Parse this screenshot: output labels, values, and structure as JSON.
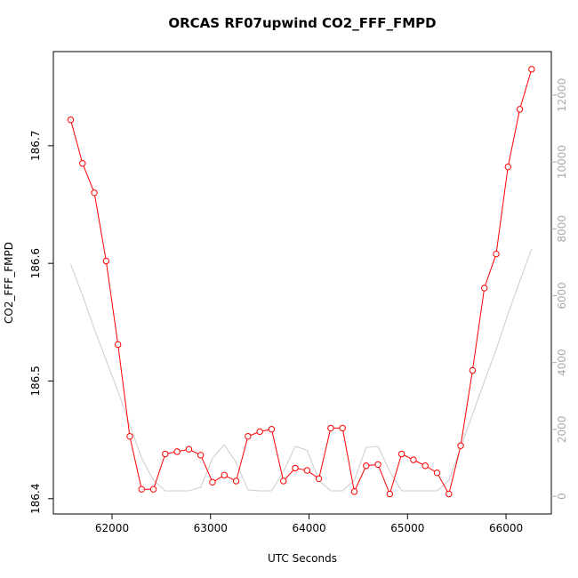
{
  "chart_data": {
    "type": "line",
    "title": "ORCAS RF07upwind CO2_FFF_FMPD",
    "x_label": "UTC Seconds",
    "y_label": "CO2_FFF_FMPD",
    "x": [
      61580,
      61700,
      61820,
      61940,
      62060,
      62180,
      62300,
      62420,
      62540,
      62660,
      62780,
      62900,
      63020,
      63140,
      63260,
      63380,
      63500,
      63620,
      63740,
      63860,
      63980,
      64100,
      64220,
      64340,
      64460,
      64580,
      64700,
      64820,
      64940,
      65060,
      65180,
      65300,
      65420,
      65540,
      65660,
      65780,
      65900,
      66020,
      66140,
      66260
    ],
    "series": [
      {
        "color": "#ff0000",
        "axis": "y",
        "markers": true,
        "values": [
          186.722,
          186.685,
          186.66,
          186.602,
          186.531,
          186.453,
          186.408,
          186.408,
          186.438,
          186.44,
          186.442,
          186.437,
          186.414,
          186.42,
          186.415,
          186.453,
          186.457,
          186.459,
          186.415,
          186.426,
          186.424,
          186.417,
          186.46,
          186.46,
          186.406,
          186.428,
          186.429,
          186.404,
          186.438,
          186.433,
          186.428,
          186.422,
          186.404,
          186.445,
          186.509,
          186.579,
          186.608,
          186.682,
          186.731,
          186.765
        ]
      },
      {
        "color": "#cccccc",
        "axis": "y2",
        "markers": false,
        "values": [
          6940,
          6010,
          5000,
          4070,
          3140,
          2130,
          1140,
          480,
          160,
          160,
          160,
          270,
          1140,
          1540,
          1010,
          190,
          160,
          160,
          740,
          1490,
          1380,
          480,
          160,
          160,
          480,
          1460,
          1490,
          740,
          160,
          160,
          160,
          160,
          480,
          1460,
          2450,
          3430,
          4390,
          5450,
          6440,
          7390
        ]
      }
    ],
    "xlim": [
      61404,
      66460
    ],
    "xticks": [
      62000,
      63000,
      64000,
      65000,
      66000
    ],
    "ylim": [
      186.387,
      186.78
    ],
    "yticks": [
      186.4,
      186.5,
      186.6,
      186.7
    ],
    "y2lim": [
      -530,
      13300
    ],
    "y2ticks": [
      0,
      2000,
      4000,
      6000,
      8000,
      10000,
      12000
    ],
    "y2_color": "#aaaaaa"
  }
}
